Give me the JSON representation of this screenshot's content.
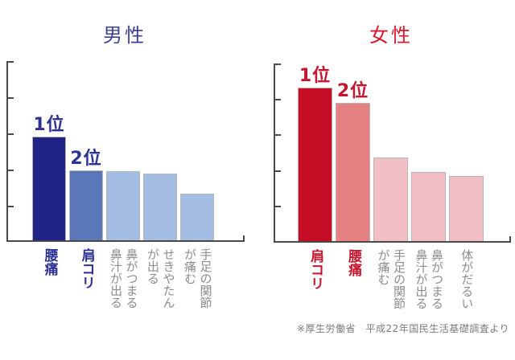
{
  "page": {
    "background": "#ffffff"
  },
  "footnote": {
    "text": "※厚生労働省　平成22年国民生活基礎調査より",
    "color": "#7a7a7a"
  },
  "style_colors": {
    "axis": "#4a4a4a",
    "bar_border": "#b5b5b5",
    "gray_label": "#8c8c8c"
  },
  "chart_data": [
    {
      "type": "bar",
      "title": "男性",
      "title_color": "#3c3f99",
      "categories": [
        "腰痛",
        "肩コリ",
        "鼻がつまる・鼻汁が出る",
        "せきやたんが出る",
        "手足の関節が痛む"
      ],
      "category_lines": [
        [
          "腰痛"
        ],
        [
          "肩コリ"
        ],
        [
          "鼻がつまる",
          "鼻汁が出る"
        ],
        [
          "せきやたん",
          "が出る"
        ],
        [
          "手足の関節",
          "が痛む"
        ]
      ],
      "values": [
        2.9,
        1.94,
        1.92,
        1.85,
        1.31
      ],
      "ylim": [
        0,
        5
      ],
      "ylabel": "",
      "xlabel": "",
      "y_axis_note": "unlabeled axis; 5 tick intervals; values estimated in tick units",
      "grid": "off",
      "rank_labels": [
        {
          "text": "1位",
          "bar_index": 0
        },
        {
          "text": "2位",
          "bar_index": 1
        }
      ],
      "rank_color": "#2c3192",
      "bar_colors": [
        "#212387",
        "#5b77ba",
        "#a3bde3",
        "#a3bde3",
        "#a3bde3"
      ],
      "category_colors": [
        "#2c3192",
        "#2c3192",
        "#8c8c8c",
        "#8c8c8c",
        "#8c8c8c"
      ]
    },
    {
      "type": "bar",
      "title": "女性",
      "title_color": "#d7182d",
      "categories": [
        "肩コリ",
        "腰痛",
        "手足の関節が痛む",
        "鼻がつまる・鼻汁が出る",
        "体がだるい"
      ],
      "category_lines": [
        [
          "肩コリ"
        ],
        [
          "腰痛"
        ],
        [
          "手足の関節",
          "が痛む"
        ],
        [
          "鼻がつまる",
          "鼻汁が出る"
        ],
        [
          "体がだるい"
        ]
      ],
      "values": [
        4.31,
        3.9,
        2.36,
        1.95,
        1.84
      ],
      "ylim": [
        0,
        5
      ],
      "ylabel": "",
      "xlabel": "",
      "y_axis_note": "unlabeled axis; 5 tick intervals; values estimated in tick units",
      "grid": "off",
      "rank_labels": [
        {
          "text": "1位",
          "bar_index": 0
        },
        {
          "text": "2位",
          "bar_index": 1
        }
      ],
      "rank_color": "#c4162c",
      "bar_colors": [
        "#c50e26",
        "#e68181",
        "#f3bfc7",
        "#f3bfc7",
        "#f3bfc7"
      ],
      "category_colors": [
        "#c4162c",
        "#c4162c",
        "#8c8c8c",
        "#8c8c8c",
        "#8c8c8c"
      ]
    }
  ]
}
